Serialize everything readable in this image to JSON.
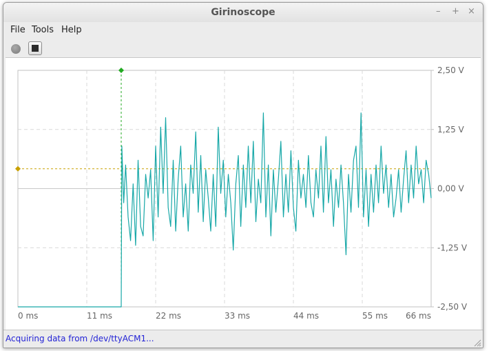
{
  "window": {
    "title": "Girinoscope"
  },
  "window_controls": {
    "minimize": "–",
    "maximize": "+",
    "close": "×"
  },
  "menu": [
    "File",
    "Tools",
    "Help"
  ],
  "toolbar": {
    "record_icon": "record-circle-icon",
    "stop_icon": "stop-square-icon"
  },
  "status": {
    "text": "Acquiring data from /dev/ttyACM1..."
  },
  "colors": {
    "signal": "#16a7a7",
    "trigger_marker": "#22aa22",
    "threshold_marker": "#c8a000",
    "grid": "#d8d8d8"
  },
  "chart_data": {
    "type": "line",
    "xlabel": "",
    "ylabel": "",
    "x_ticks": [
      "0 ms",
      "11 ms",
      "22 ms",
      "33 ms",
      "44 ms",
      "55 ms",
      "66 ms"
    ],
    "y_ticks": [
      "2,50 V",
      "1,25 V",
      "0,00 V",
      "-1,25 V",
      "-2,50 V"
    ],
    "xlim": [
      0,
      66
    ],
    "ylim": [
      -2.5,
      2.5
    ],
    "trigger_x": 16.5,
    "threshold_y": 0.42,
    "grid": true,
    "series": [
      {
        "color": "#16a7a7",
        "x": [
          0,
          16.5,
          16.6,
          16.9,
          17.2,
          17.6,
          18.0,
          18.4,
          18.8,
          19.2,
          19.6,
          20.0,
          20.4,
          20.8,
          21.2,
          21.6,
          22.0,
          22.4,
          22.8,
          23.2,
          23.6,
          24.0,
          24.4,
          24.8,
          25.2,
          25.6,
          26.0,
          26.4,
          26.8,
          27.2,
          27.6,
          28.0,
          28.4,
          28.8,
          29.2,
          29.6,
          30.0,
          30.4,
          30.8,
          31.2,
          31.6,
          32.0,
          32.4,
          32.8,
          33.2,
          33.6,
          34.0,
          34.4,
          34.8,
          35.2,
          35.6,
          36.0,
          36.4,
          36.8,
          37.2,
          37.6,
          38.0,
          38.4,
          38.8,
          39.2,
          39.6,
          40.0,
          40.4,
          40.8,
          41.2,
          41.6,
          42.0,
          42.4,
          42.8,
          43.2,
          43.6,
          44.0,
          44.4,
          44.8,
          45.2,
          45.6,
          46.0,
          46.4,
          46.8,
          47.2,
          47.6,
          48.0,
          48.4,
          48.8,
          49.2,
          49.6,
          50.0,
          50.4,
          50.8,
          51.2,
          51.6,
          52.0,
          52.4,
          52.8,
          53.2,
          53.6,
          54.0,
          54.4,
          54.8,
          55.2,
          55.6,
          56.0,
          56.4,
          56.8,
          57.2,
          57.6,
          58.0,
          58.4,
          58.8,
          59.2,
          59.6,
          60.0,
          60.4,
          60.8,
          61.2,
          61.6,
          62.0,
          62.4,
          62.8,
          63.2,
          63.6,
          64.0,
          64.4,
          64.8,
          65.2,
          65.6,
          66.0
        ],
        "y": [
          -2.5,
          -2.5,
          0.9,
          -0.3,
          0.5,
          -0.6,
          -1.1,
          0.1,
          -1.2,
          0.6,
          -0.8,
          -1.0,
          0.3,
          -0.2,
          0.4,
          -1.1,
          0.9,
          -0.6,
          1.3,
          -0.1,
          1.5,
          -0.4,
          -0.8,
          0.6,
          -0.9,
          0.2,
          0.9,
          -0.6,
          0.1,
          -0.9,
          0.5,
          -0.1,
          1.2,
          -0.5,
          0.7,
          -0.7,
          0.4,
          -0.2,
          -0.9,
          0.3,
          -0.8,
          1.3,
          -0.1,
          0.6,
          -0.6,
          0.3,
          -0.3,
          -1.3,
          0.1,
          0.7,
          -0.8,
          0.5,
          -0.4,
          0.9,
          -0.3,
          1.0,
          -0.7,
          0.2,
          -0.3,
          1.6,
          -0.6,
          0.5,
          -1.0,
          0.4,
          -0.5,
          0.2,
          1.0,
          -0.6,
          0.3,
          -0.5,
          0.8,
          -0.4,
          -0.9,
          0.6,
          -0.2,
          0.3,
          -0.4,
          0.7,
          -0.3,
          -0.6,
          0.4,
          -0.2,
          0.9,
          -0.5,
          1.1,
          -0.3,
          0.4,
          -0.8,
          0.2,
          -0.4,
          0.5,
          -0.3,
          -1.4,
          0.3,
          -0.5,
          0.6,
          0.9,
          -0.4,
          1.6,
          -0.6,
          0.4,
          -0.8,
          0.3,
          -0.5,
          0.5,
          -0.3,
          0.9,
          -0.1,
          0.5,
          -0.4,
          0.3,
          -0.6,
          -0.2,
          0.4,
          -0.5,
          0.2,
          0.8,
          -0.3,
          0.5,
          -0.2,
          0.9,
          0.1,
          0.4,
          -0.3,
          0.6,
          0.3,
          -0.2
        ]
      }
    ]
  }
}
